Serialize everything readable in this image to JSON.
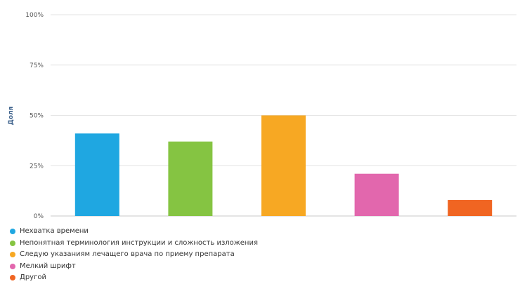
{
  "chart_data": {
    "type": "bar",
    "title": "",
    "ylabel": "Доля",
    "xlabel": "",
    "ylim": [
      0,
      100
    ],
    "yticks": [
      "0%",
      "25%",
      "50%",
      "75%",
      "100%"
    ],
    "grid": true,
    "legend_position": "bottom-left",
    "categories": [
      "Нехватка времени",
      "Непонятная терминология инструкции и сложность изложения",
      "Следую указаниям лечащего врача по приему препарата",
      "Мелкий шрифт",
      "Другой"
    ],
    "values": [
      41,
      37,
      50,
      21,
      8
    ],
    "colors": [
      "#1fa7e1",
      "#85c442",
      "#f7a823",
      "#e267ad",
      "#f06522"
    ]
  }
}
